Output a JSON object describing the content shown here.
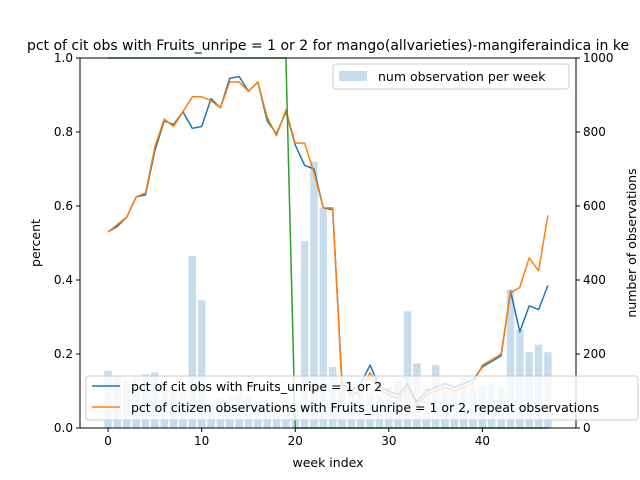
{
  "chart_data": {
    "type": "line",
    "title": "pct of cit obs with Fruits_unripe = 1 or 2 for mango(allvarieties)-mangiferaindica in ke",
    "xlabel": "week index",
    "ylabel": "percent",
    "y2label": "number of observations",
    "xlim": [
      -3,
      50
    ],
    "ylim": [
      0,
      1.0
    ],
    "y2lim": [
      0,
      1000
    ],
    "x_ticks": [
      0,
      10,
      20,
      30,
      40
    ],
    "y_ticks": [
      0.0,
      0.2,
      0.4,
      0.6,
      0.8,
      1.0
    ],
    "y2_ticks": [
      0,
      200,
      400,
      600,
      800,
      1000
    ],
    "x": [
      0,
      1,
      2,
      3,
      4,
      5,
      6,
      7,
      8,
      9,
      10,
      11,
      12,
      13,
      14,
      15,
      16,
      17,
      18,
      19,
      20,
      21,
      22,
      23,
      24,
      25,
      26,
      27,
      28,
      29,
      30,
      31,
      32,
      33,
      34,
      35,
      36,
      37,
      38,
      39,
      40,
      41,
      42,
      43,
      44,
      45,
      46,
      47
    ],
    "bars": {
      "name": "num observation per week",
      "color": "#1f77b4",
      "values": [
        155,
        140,
        130,
        135,
        145,
        150,
        125,
        105,
        95,
        465,
        345,
        70,
        80,
        85,
        95,
        85,
        70,
        75,
        70,
        65,
        70,
        505,
        720,
        595,
        165,
        125,
        105,
        100,
        95,
        90,
        110,
        130,
        315,
        175,
        115,
        170,
        115,
        115,
        135,
        110,
        115,
        120,
        110,
        375,
        265,
        205,
        225,
        205
      ]
    },
    "series": [
      {
        "name": "pct of cit obs with Fruits_unripe = 1 or 2",
        "color": "#1f77b4",
        "values": [
          0.53,
          0.545,
          0.57,
          0.625,
          0.63,
          0.75,
          0.83,
          0.82,
          0.855,
          0.81,
          0.815,
          0.89,
          0.865,
          0.945,
          0.95,
          0.91,
          0.935,
          0.83,
          0.795,
          0.855,
          0.765,
          0.71,
          0.7,
          0.595,
          0.59,
          0.12,
          0.1,
          0.12,
          0.17,
          0.11,
          0.1,
          0.09,
          0.12,
          0.07,
          0.1,
          0.11,
          0.12,
          0.11,
          0.12,
          0.13,
          0.165,
          0.18,
          0.195,
          0.37,
          0.26,
          0.33,
          0.32,
          0.385
        ]
      },
      {
        "name": "pct of citizen observations with Fruits_unripe = 1 or 2, repeat observations",
        "color": "#ff7f0e",
        "values": [
          0.53,
          0.55,
          0.57,
          0.625,
          0.635,
          0.76,
          0.835,
          0.815,
          0.855,
          0.895,
          0.895,
          0.885,
          0.865,
          0.935,
          0.935,
          0.91,
          0.935,
          0.84,
          0.79,
          0.86,
          0.77,
          0.77,
          0.69,
          0.595,
          0.595,
          0.11,
          0.09,
          0.1,
          0.15,
          0.1,
          0.09,
          0.08,
          0.11,
          0.06,
          0.09,
          0.1,
          0.11,
          0.1,
          0.11,
          0.12,
          0.17,
          0.185,
          0.2,
          0.365,
          0.38,
          0.46,
          0.425,
          0.575
        ]
      },
      {
        "name": "",
        "color": "#2ca02c",
        "values": [
          1.0,
          1.0,
          1.0,
          1.0,
          1.0,
          1.0,
          1.0,
          1.0,
          1.0,
          1.0,
          1.0,
          1.0,
          1.0,
          1.0,
          1.0,
          1.0,
          1.0,
          1.0,
          1.0,
          1.0,
          0.0,
          0.0,
          0.0,
          0.0,
          0.0,
          0.0,
          0.0,
          0.0,
          0.0,
          0.0,
          0.0,
          0.0,
          0.0,
          0.0,
          0.0,
          0.0,
          0.0,
          0.0,
          0.0,
          0.0,
          0.0,
          0.0,
          0.0,
          0.0,
          0.0,
          0.0,
          0.0,
          0.0
        ]
      }
    ],
    "legend_upper": "top-right",
    "legend_lower": "bottom-left",
    "grid": false
  }
}
